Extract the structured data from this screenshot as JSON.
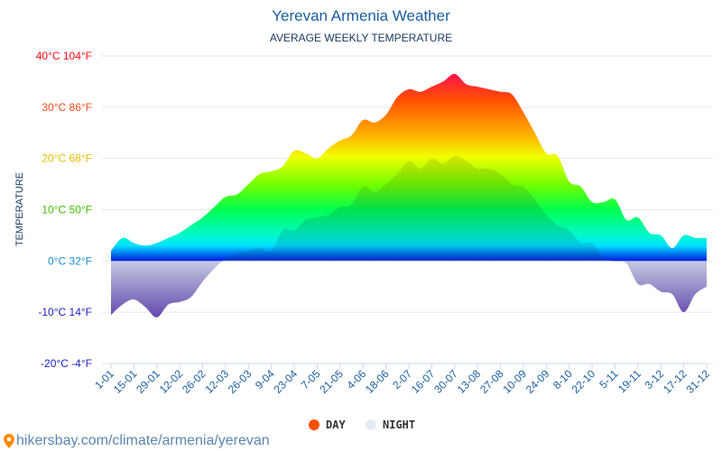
{
  "header": {
    "title": "Yerevan Armenia Weather",
    "subtitle": "AVERAGE WEEKLY TEMPERATURE"
  },
  "footer": {
    "url": "hikersbay.com/climate/armenia/yerevan"
  },
  "chart_data": {
    "type": "area",
    "title": "Yerevan Armenia Weather",
    "subtitle": "AVERAGE WEEKLY TEMPERATURE",
    "ylabel": "TEMPERATURE",
    "xlabel": "",
    "ylim": [
      -20,
      40
    ],
    "grid": true,
    "legend_position": "bottom",
    "y_ticks": [
      {
        "value": 40,
        "label": "40°C 104°F",
        "color": "#ff0a1a"
      },
      {
        "value": 30,
        "label": "30°C 86°F",
        "color": "#ff4a1a"
      },
      {
        "value": 20,
        "label": "20°C 68°F",
        "color": "#e0c000"
      },
      {
        "value": 10,
        "label": "10°C 50°F",
        "color": "#40c000"
      },
      {
        "value": 0,
        "label": "0°C 32°F",
        "color": "#1a90e0"
      },
      {
        "value": -10,
        "label": "-10°C 14°F",
        "color": "#2020c0"
      },
      {
        "value": -20,
        "label": "-20°C -4°F",
        "color": "#2020c0"
      }
    ],
    "x_tick_labels": [
      "1-01",
      "15-01",
      "29-01",
      "12-02",
      "26-02",
      "12-03",
      "26-03",
      "9-04",
      "23-04",
      "7-05",
      "21-05",
      "4-06",
      "18-06",
      "2-07",
      "16-07",
      "30-07",
      "13-08",
      "27-08",
      "10-09",
      "24-09",
      "8-10",
      "22-10",
      "5-11",
      "19-11",
      "3-12",
      "17-12",
      "31-12"
    ],
    "series": [
      {
        "name": "DAY",
        "color": "#ff5000",
        "values": [
          2,
          4.5,
          3.5,
          3,
          3.5,
          4.5,
          5.5,
          7,
          8.5,
          10.5,
          12.5,
          13,
          15,
          17,
          17.5,
          18.5,
          21.5,
          21,
          20,
          22,
          23.5,
          24.5,
          27.5,
          27,
          28.5,
          32,
          33.5,
          33,
          34,
          35,
          36.5,
          34.5,
          34,
          33.5,
          33,
          32.5,
          29,
          25,
          21,
          20.5,
          15.5,
          14.5,
          11.5,
          11.5,
          12,
          8,
          8.5,
          5.5,
          5,
          2.5,
          5,
          4.5,
          4.5
        ]
      },
      {
        "name": "NIGHT",
        "color": "#e3eaf3",
        "values": [
          -10.5,
          -8.5,
          -7.5,
          -9,
          -11,
          -8.5,
          -8,
          -7,
          -4,
          -1.5,
          0.5,
          1.5,
          2,
          2.5,
          2,
          6,
          6,
          8,
          8.5,
          9,
          10.5,
          11,
          14.5,
          13.5,
          15,
          17,
          19.5,
          18,
          20,
          19,
          20.5,
          19.5,
          18,
          18,
          17,
          15,
          14.5,
          12,
          9,
          7,
          6,
          3.5,
          3.5,
          0.5,
          0,
          -0.5,
          -4.5,
          -4.5,
          -6,
          -6.5,
          -10,
          -6.5,
          -5
        ]
      }
    ]
  }
}
